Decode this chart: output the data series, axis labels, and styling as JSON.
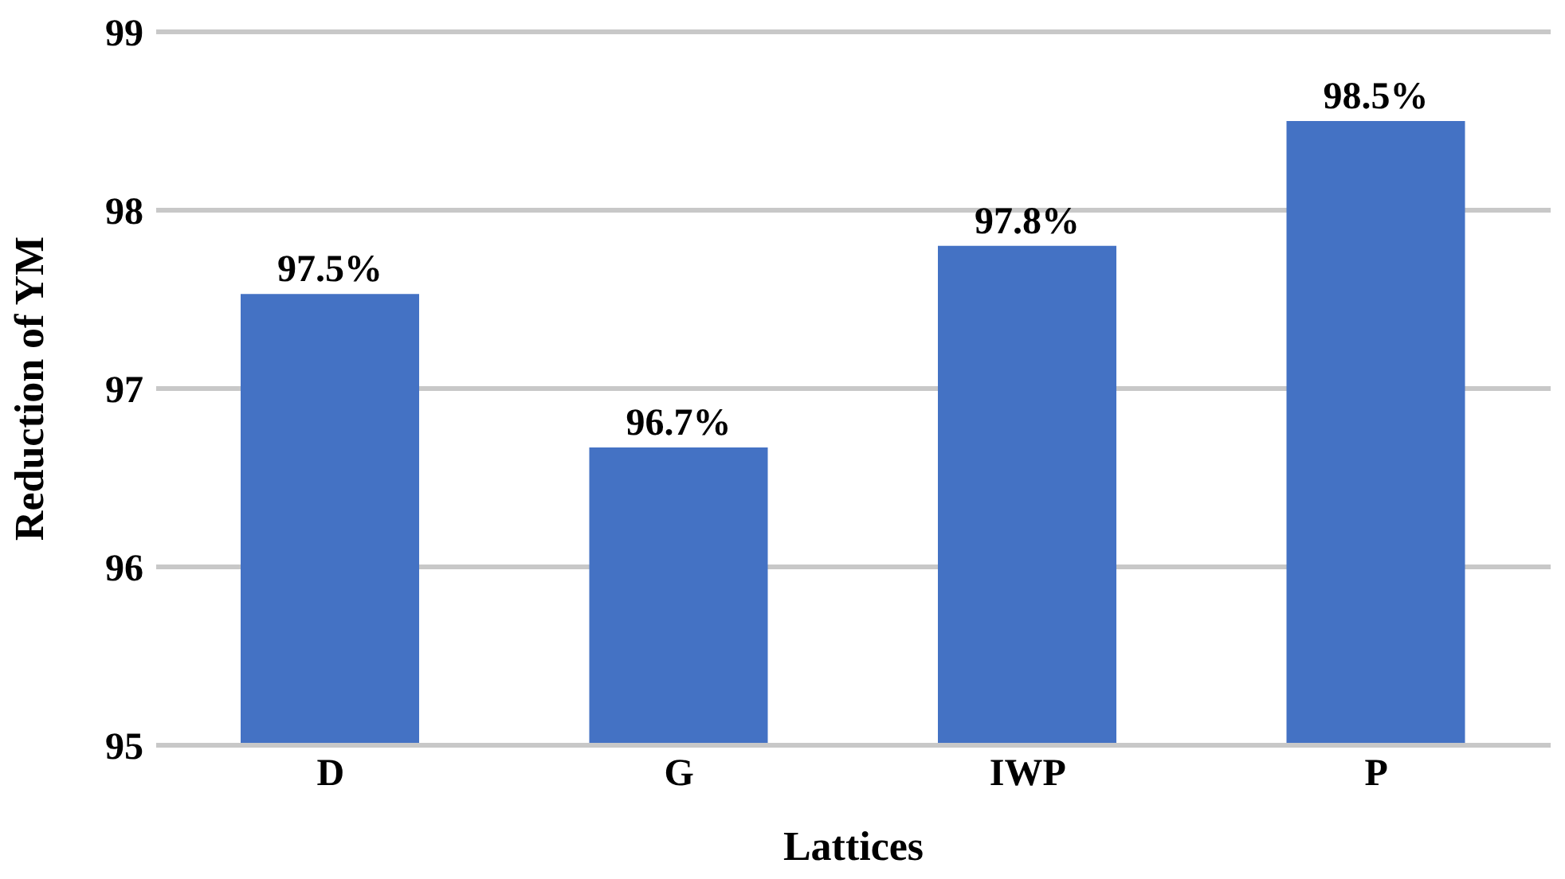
{
  "chart_data": {
    "type": "bar",
    "xlabel": "Lattices",
    "ylabel": "Reduction of YM",
    "categories": [
      "D",
      "G",
      "IWP",
      "P"
    ],
    "values": [
      97.53,
      96.67,
      97.8,
      98.5
    ],
    "value_labels": [
      "97.5%",
      "96.7%",
      "97.8%",
      "98.5%"
    ],
    "color": "#4472c4",
    "ylim": [
      95,
      99
    ],
    "yticks": [
      95,
      96,
      97,
      98,
      99
    ],
    "grid": "y"
  }
}
